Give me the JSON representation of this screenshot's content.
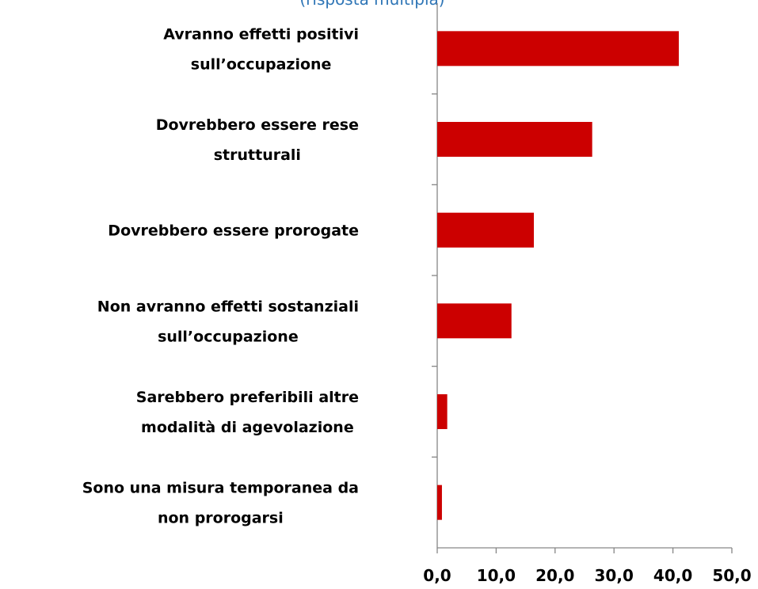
{
  "chart_data": {
    "type": "bar",
    "orientation": "horizontal",
    "subtitle": "(risposta multipla)",
    "categories": [
      [
        "Avranno effetti positivi",
        "sull’occupazione"
      ],
      [
        "Dovrebbero essere rese",
        "strutturali"
      ],
      [
        "Dovrebbero essere prorogate"
      ],
      [
        "Non avranno effetti sostanziali",
        "sull’occupazione"
      ],
      [
        "Sarebbero preferibili altre",
        "modalità di agevolazione"
      ],
      [
        "Sono una misura temporanea da",
        "non prorogarsi"
      ]
    ],
    "values": [
      41.0,
      26.3,
      16.4,
      12.6,
      1.7,
      0.8
    ],
    "color": "#cc0000",
    "xlim": [
      0,
      50
    ],
    "xticks": [
      {
        "value": 0,
        "label": "0,0"
      },
      {
        "value": 10,
        "label": "10,0"
      },
      {
        "value": 20,
        "label": "20,0"
      },
      {
        "value": 30,
        "label": "30,0"
      },
      {
        "value": 40,
        "label": "40,0"
      },
      {
        "value": 50,
        "label": "50,0"
      }
    ]
  }
}
